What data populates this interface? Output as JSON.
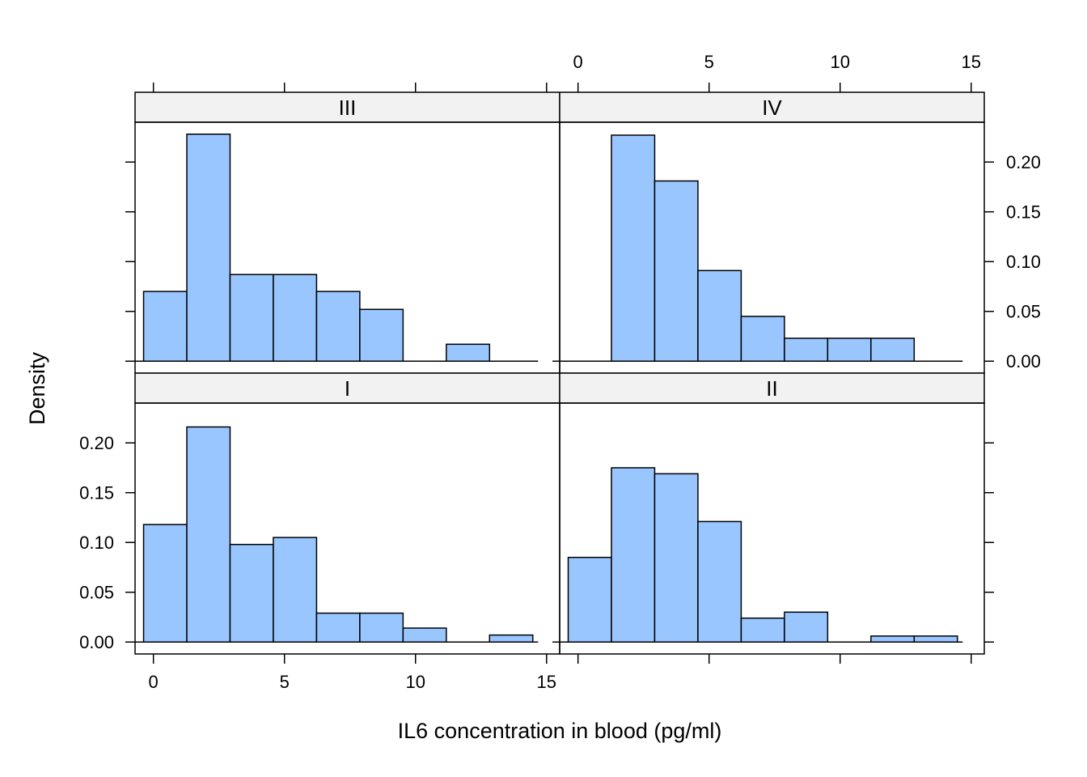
{
  "chart_data": {
    "type": "bar",
    "subtype": "histogram-trellis",
    "layout": "2x2",
    "xlabel": "IL6 concentration in blood (pg/ml)",
    "ylabel": "Density",
    "xlim": [
      -0.7,
      15.5
    ],
    "ylim": [
      -0.012,
      0.24
    ],
    "x_ticks": [
      0,
      5,
      10,
      15
    ],
    "y_ticks": [
      0.0,
      0.05,
      0.1,
      0.15,
      0.2
    ],
    "y_tick_labels": [
      "0.00",
      "0.05",
      "0.10",
      "0.15",
      "0.20"
    ],
    "bin_edges": [
      -0.375,
      1.275,
      2.925,
      4.575,
      6.225,
      7.875,
      9.525,
      11.175,
      12.825,
      14.475
    ],
    "colors": {
      "bar_fill": "#99c6ff",
      "bar_stroke": "#000000",
      "strip_fill": "#f2f2f2"
    },
    "panels": [
      {
        "name": "III",
        "row": 0,
        "col": 0,
        "values": [
          0.07,
          0.228,
          0.087,
          0.087,
          0.07,
          0.052,
          0.0,
          0.017,
          0.0
        ]
      },
      {
        "name": "IV",
        "row": 0,
        "col": 1,
        "values": [
          0.0,
          0.227,
          0.181,
          0.091,
          0.045,
          0.023,
          0.023,
          0.023,
          0.0
        ]
      },
      {
        "name": "I",
        "row": 1,
        "col": 0,
        "values": [
          0.118,
          0.216,
          0.098,
          0.105,
          0.029,
          0.029,
          0.014,
          0.0,
          0.007
        ]
      },
      {
        "name": "II",
        "row": 1,
        "col": 1,
        "values": [
          0.085,
          0.175,
          0.169,
          0.121,
          0.024,
          0.03,
          0.0,
          0.006,
          0.006
        ]
      }
    ]
  }
}
